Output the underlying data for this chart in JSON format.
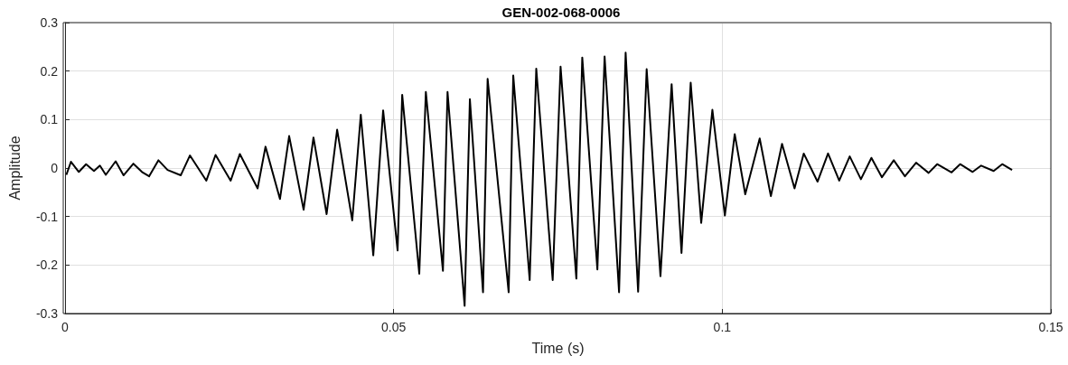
{
  "chart_data": {
    "type": "line",
    "title": "GEN-002-068-0006",
    "xlabel": "Time (s)",
    "ylabel": "Amplitude",
    "xlim": [
      0,
      0.15
    ],
    "xticks": [
      0,
      0.05,
      0.1,
      0.15
    ],
    "ylim": [
      -0.3,
      0.3
    ],
    "yticks": [
      -0.3,
      -0.2,
      -0.1,
      0,
      0.1,
      0.2,
      0.3
    ],
    "grid": true,
    "marker": "none",
    "line_style": "solid",
    "series": [
      {
        "color": "#000000",
        "x": [
          0.0002,
          0.0009,
          0.0021,
          0.0032,
          0.0044,
          0.0053,
          0.0062,
          0.0077,
          0.0089,
          0.0104,
          0.0117,
          0.0128,
          0.0142,
          0.0156,
          0.0176,
          0.019,
          0.0215,
          0.0229,
          0.0252,
          0.0266,
          0.0293,
          0.0305,
          0.0327,
          0.0341,
          0.0363,
          0.0378,
          0.0398,
          0.0414,
          0.0437,
          0.045,
          0.0469,
          0.0484,
          0.0506,
          0.0513,
          0.0539,
          0.0549,
          0.0575,
          0.0582,
          0.0608,
          0.0616,
          0.0636,
          0.0643,
          0.0675,
          0.0682,
          0.0707,
          0.0717,
          0.0742,
          0.0754,
          0.0778,
          0.0787,
          0.081,
          0.0821,
          0.0843,
          0.0853,
          0.0872,
          0.0885,
          0.0906,
          0.0923,
          0.0938,
          0.0952,
          0.0968,
          0.0985,
          0.1004,
          0.1019,
          0.1035,
          0.1057,
          0.1074,
          0.1091,
          0.111,
          0.1124,
          0.1145,
          0.1161,
          0.1178,
          0.1194,
          0.1211,
          0.1227,
          0.1243,
          0.1261,
          0.1278,
          0.1295,
          0.1314,
          0.1327,
          0.1349,
          0.1362,
          0.1381,
          0.1394,
          0.1413,
          0.1426,
          0.1441
        ],
        "values": [
          -0.014,
          0.013,
          -0.008,
          0.008,
          -0.006,
          0.005,
          -0.014,
          0.014,
          -0.015,
          0.009,
          -0.008,
          -0.017,
          0.016,
          -0.004,
          -0.015,
          0.026,
          -0.026,
          0.027,
          -0.026,
          0.029,
          -0.042,
          0.044,
          -0.064,
          0.066,
          -0.086,
          0.063,
          -0.095,
          0.079,
          -0.108,
          0.11,
          -0.18,
          0.119,
          -0.17,
          0.151,
          -0.218,
          0.157,
          -0.212,
          0.157,
          -0.284,
          0.142,
          -0.256,
          0.184,
          -0.256,
          0.191,
          -0.231,
          0.205,
          -0.231,
          0.209,
          -0.228,
          0.228,
          -0.209,
          0.23,
          -0.256,
          0.238,
          -0.255,
          0.204,
          -0.223,
          0.173,
          -0.175,
          0.176,
          -0.113,
          0.12,
          -0.098,
          0.07,
          -0.054,
          0.061,
          -0.058,
          0.05,
          -0.042,
          0.03,
          -0.028,
          0.03,
          -0.026,
          0.024,
          -0.023,
          0.021,
          -0.019,
          0.016,
          -0.017,
          0.011,
          -0.01,
          0.008,
          -0.009,
          0.008,
          -0.008,
          0.005,
          -0.006,
          0.008,
          -0.004
        ]
      }
    ]
  }
}
